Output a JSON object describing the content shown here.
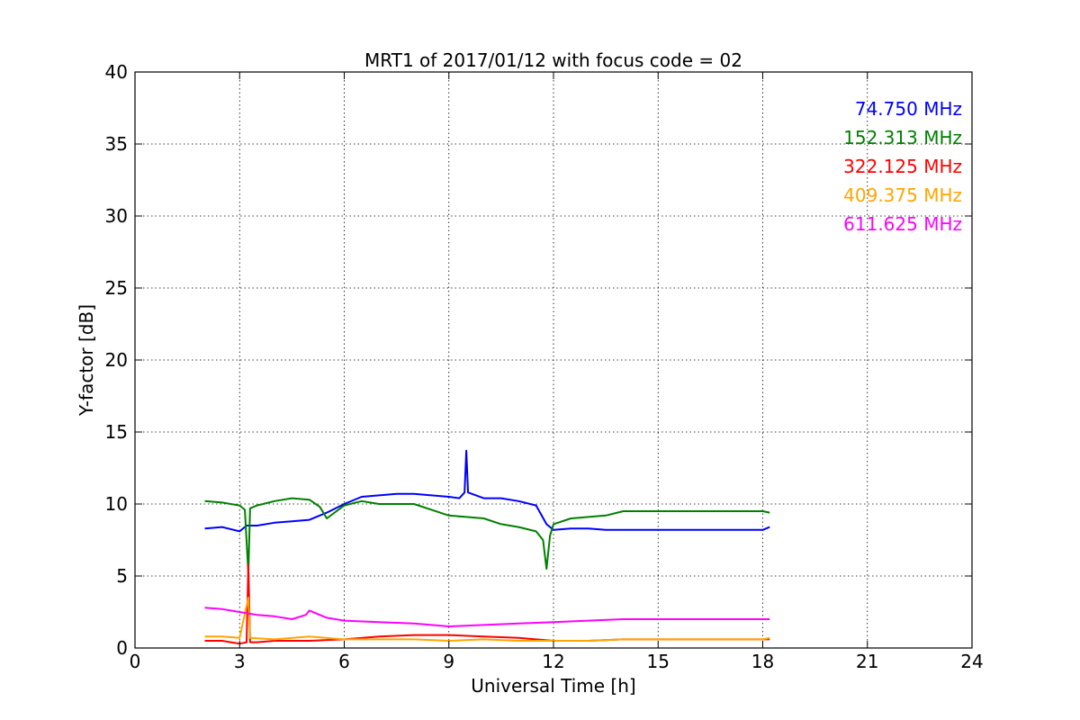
{
  "chart_data": {
    "type": "line",
    "title": "MRT1 of 2017/01/12 with focus code = 02",
    "xlabel": "Universal Time [h]",
    "ylabel": "Y-factor [dB]",
    "xlim": [
      0,
      24
    ],
    "ylim": [
      0,
      40
    ],
    "xticks": [
      0,
      3,
      6,
      9,
      12,
      15,
      18,
      21,
      24
    ],
    "yticks": [
      0,
      5,
      10,
      15,
      20,
      25,
      30,
      35,
      40
    ],
    "grid": true,
    "legend_position": "top-right",
    "series": [
      {
        "name": "74.750 MHz",
        "color": "#0000ff",
        "points": [
          [
            2.0,
            8.3
          ],
          [
            2.5,
            8.4
          ],
          [
            3.0,
            8.1
          ],
          [
            3.2,
            8.5
          ],
          [
            3.5,
            8.5
          ],
          [
            4.0,
            8.7
          ],
          [
            4.5,
            8.8
          ],
          [
            5.0,
            8.9
          ],
          [
            5.5,
            9.4
          ],
          [
            6.0,
            10.0
          ],
          [
            6.5,
            10.5
          ],
          [
            7.0,
            10.6
          ],
          [
            7.5,
            10.7
          ],
          [
            8.0,
            10.7
          ],
          [
            8.5,
            10.6
          ],
          [
            9.0,
            10.5
          ],
          [
            9.3,
            10.4
          ],
          [
            9.45,
            10.8
          ],
          [
            9.5,
            13.7
          ],
          [
            9.55,
            10.8
          ],
          [
            10.0,
            10.4
          ],
          [
            10.5,
            10.4
          ],
          [
            11.0,
            10.2
          ],
          [
            11.5,
            9.9
          ],
          [
            11.8,
            8.6
          ],
          [
            12.0,
            8.2
          ],
          [
            12.5,
            8.3
          ],
          [
            13.0,
            8.3
          ],
          [
            13.5,
            8.2
          ],
          [
            14.0,
            8.2
          ],
          [
            18.0,
            8.2
          ],
          [
            18.2,
            8.4
          ]
        ]
      },
      {
        "name": "152.313 MHz",
        "color": "#008000",
        "points": [
          [
            2.0,
            10.2
          ],
          [
            2.5,
            10.1
          ],
          [
            3.0,
            9.9
          ],
          [
            3.15,
            9.6
          ],
          [
            3.25,
            5.2
          ],
          [
            3.3,
            9.7
          ],
          [
            3.5,
            9.9
          ],
          [
            4.0,
            10.2
          ],
          [
            4.5,
            10.4
          ],
          [
            5.0,
            10.3
          ],
          [
            5.3,
            9.8
          ],
          [
            5.5,
            9.0
          ],
          [
            6.0,
            9.9
          ],
          [
            6.5,
            10.2
          ],
          [
            7.0,
            10.0
          ],
          [
            7.5,
            10.0
          ],
          [
            8.0,
            10.0
          ],
          [
            8.5,
            9.6
          ],
          [
            9.0,
            9.2
          ],
          [
            9.5,
            9.1
          ],
          [
            10.0,
            9.0
          ],
          [
            10.5,
            8.6
          ],
          [
            11.0,
            8.4
          ],
          [
            11.5,
            8.1
          ],
          [
            11.7,
            7.5
          ],
          [
            11.8,
            5.5
          ],
          [
            11.9,
            7.8
          ],
          [
            12.0,
            8.6
          ],
          [
            12.5,
            9.0
          ],
          [
            13.0,
            9.1
          ],
          [
            13.5,
            9.2
          ],
          [
            14.0,
            9.5
          ],
          [
            18.0,
            9.5
          ],
          [
            18.2,
            9.4
          ]
        ]
      },
      {
        "name": "322.125 MHz",
        "color": "#ff0000",
        "points": [
          [
            2.0,
            0.5
          ],
          [
            2.5,
            0.5
          ],
          [
            3.0,
            0.3
          ],
          [
            3.2,
            0.4
          ],
          [
            3.25,
            5.8
          ],
          [
            3.3,
            0.4
          ],
          [
            3.5,
            0.4
          ],
          [
            4.0,
            0.5
          ],
          [
            5.0,
            0.5
          ],
          [
            6.0,
            0.6
          ],
          [
            7.0,
            0.8
          ],
          [
            8.0,
            0.9
          ],
          [
            9.0,
            0.9
          ],
          [
            10.0,
            0.8
          ],
          [
            11.0,
            0.7
          ],
          [
            12.0,
            0.5
          ],
          [
            13.0,
            0.5
          ],
          [
            14.0,
            0.6
          ],
          [
            18.0,
            0.6
          ],
          [
            18.2,
            0.6
          ]
        ]
      },
      {
        "name": "409.375 MHz",
        "color": "#ffa500",
        "points": [
          [
            2.0,
            0.8
          ],
          [
            2.5,
            0.8
          ],
          [
            3.0,
            0.7
          ],
          [
            3.25,
            3.5
          ],
          [
            3.3,
            0.7
          ],
          [
            4.0,
            0.6
          ],
          [
            5.0,
            0.8
          ],
          [
            6.0,
            0.6
          ],
          [
            7.0,
            0.6
          ],
          [
            8.0,
            0.6
          ],
          [
            9.0,
            0.5
          ],
          [
            10.0,
            0.6
          ],
          [
            11.0,
            0.5
          ],
          [
            12.0,
            0.5
          ],
          [
            13.0,
            0.5
          ],
          [
            14.0,
            0.6
          ],
          [
            18.0,
            0.6
          ],
          [
            18.2,
            0.7
          ]
        ]
      },
      {
        "name": "611.625 MHz",
        "color": "#ff00ff",
        "points": [
          [
            2.0,
            2.8
          ],
          [
            2.5,
            2.7
          ],
          [
            3.0,
            2.5
          ],
          [
            3.5,
            2.3
          ],
          [
            4.0,
            2.2
          ],
          [
            4.5,
            2.0
          ],
          [
            4.9,
            2.3
          ],
          [
            5.0,
            2.6
          ],
          [
            5.5,
            2.1
          ],
          [
            6.0,
            1.9
          ],
          [
            7.0,
            1.8
          ],
          [
            8.0,
            1.7
          ],
          [
            9.0,
            1.5
          ],
          [
            10.0,
            1.6
          ],
          [
            11.0,
            1.7
          ],
          [
            12.0,
            1.8
          ],
          [
            13.0,
            1.9
          ],
          [
            14.0,
            2.0
          ],
          [
            18.0,
            2.0
          ],
          [
            18.2,
            2.0
          ]
        ]
      }
    ]
  }
}
